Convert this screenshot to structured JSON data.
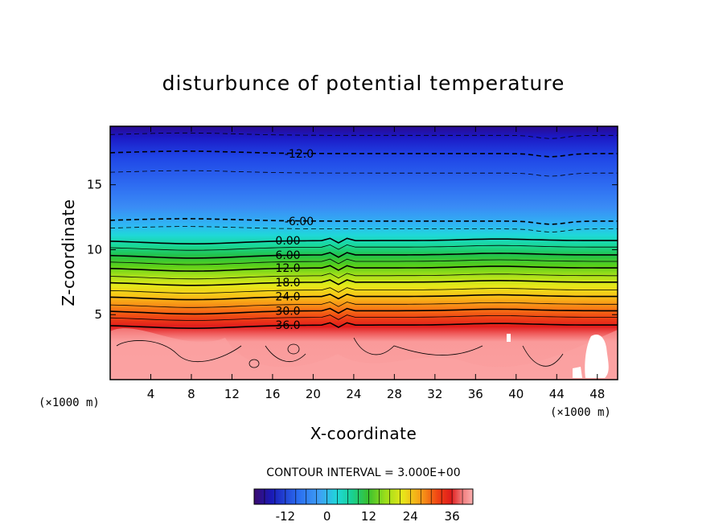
{
  "chart_data": {
    "type": "heatmap",
    "title": "disturbunce of potential temperature",
    "xlabel": "X-coordinate",
    "ylabel": "Z-coordinate",
    "x_unit": "(×1000 m)",
    "y_unit": "(×1000 m)",
    "xlim": [
      0,
      50
    ],
    "ylim": [
      0,
      19.5
    ],
    "x_ticks": [
      "4",
      "8",
      "12",
      "16",
      "20",
      "24",
      "28",
      "32",
      "36",
      "40",
      "44",
      "48"
    ],
    "y_ticks": [
      "5",
      "10",
      "15"
    ],
    "contour_interval_text": "CONTOUR INTERVAL = 3.000E+00",
    "contour_labels": [
      "-12.0",
      "-6.00",
      "0.00",
      "6.00",
      "12.0",
      "18.0",
      "24.0",
      "30.0",
      "36.0"
    ],
    "contour_levels": [
      {
        "value": -15,
        "z": 18.8
      },
      {
        "value": -12,
        "z": 17.4
      },
      {
        "value": -9,
        "z": 15.9
      },
      {
        "value": -6,
        "z": 12.2
      },
      {
        "value": -3,
        "z": 11.6
      },
      {
        "value": 0,
        "z": 10.7
      },
      {
        "value": 3,
        "z": 10.2
      },
      {
        "value": 6,
        "z": 9.6
      },
      {
        "value": 9,
        "z": 9.1
      },
      {
        "value": 12,
        "z": 8.6
      },
      {
        "value": 15,
        "z": 8.0
      },
      {
        "value": 18,
        "z": 7.5
      },
      {
        "value": 21,
        "z": 6.9
      },
      {
        "value": 24,
        "z": 6.4
      },
      {
        "value": 27,
        "z": 5.8
      },
      {
        "value": 30,
        "z": 5.3
      },
      {
        "value": 33,
        "z": 4.8
      },
      {
        "value": 36,
        "z": 4.2
      }
    ],
    "colorbar": {
      "ticks": [
        "-12",
        "0",
        "12",
        "24",
        "36"
      ],
      "range": [
        -21,
        42
      ]
    }
  }
}
